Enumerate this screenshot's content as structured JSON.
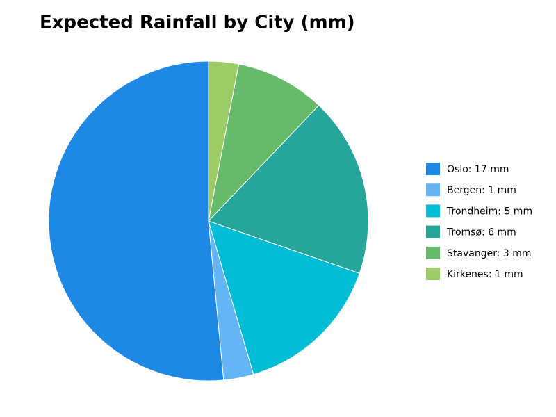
{
  "chart_data": {
    "type": "pie",
    "title": "Expected Rainfall by City (mm)",
    "categories": [
      "Oslo: 17 mm",
      "Bergen: 1 mm",
      "Trondheim: 5 mm",
      "Tromsø: 6 mm",
      "Stavanger: 3 mm",
      "Kirkenes: 1 mm"
    ],
    "values": [
      17,
      1,
      5,
      6,
      3,
      1
    ],
    "colors": [
      "#1e88e5",
      "#64b5f6",
      "#00bcd4",
      "#26a69a",
      "#66bb6a",
      "#9ccc65"
    ],
    "legend": "right"
  }
}
